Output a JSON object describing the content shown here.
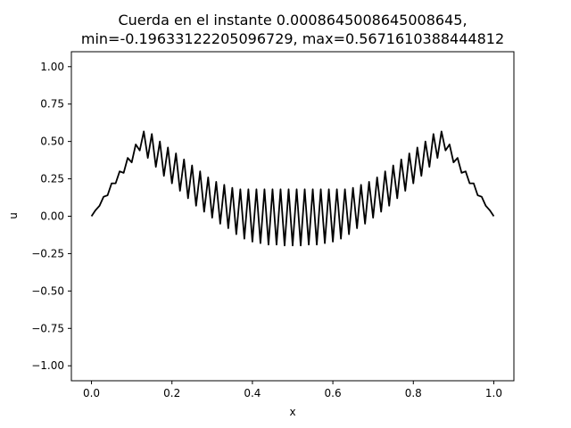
{
  "chart_data": {
    "type": "line",
    "title_lines": [
      "Cuerda en el instante 0.0008645008645008645,",
      "min=-0.19633122205096729, max=0.5671610388444812"
    ],
    "xlabel": "x",
    "ylabel": "u",
    "xlim": [
      -0.05,
      1.05
    ],
    "ylim": [
      -1.1,
      1.1
    ],
    "xticks": [
      {
        "value": 0.0,
        "label": "0.0"
      },
      {
        "value": 0.2,
        "label": "0.2"
      },
      {
        "value": 0.4,
        "label": "0.4"
      },
      {
        "value": 0.6,
        "label": "0.6"
      },
      {
        "value": 0.8,
        "label": "0.8"
      },
      {
        "value": 1.0,
        "label": "1.0"
      }
    ],
    "yticks": [
      {
        "value": 1.0,
        "label": "1.00"
      },
      {
        "value": 0.75,
        "label": "0.75"
      },
      {
        "value": 0.5,
        "label": "0.50"
      },
      {
        "value": 0.25,
        "label": "0.25"
      },
      {
        "value": 0.0,
        "label": "0.00"
      },
      {
        "value": -0.25,
        "label": "−0.25"
      },
      {
        "value": -0.5,
        "label": "−0.50"
      },
      {
        "value": -0.75,
        "label": "−0.75"
      },
      {
        "value": -1.0,
        "label": "−1.00"
      }
    ],
    "grid": false,
    "series": [
      {
        "color": "#000000",
        "x": [
          0.0,
          0.01,
          0.02,
          0.03,
          0.04,
          0.05,
          0.06,
          0.07,
          0.08,
          0.09,
          0.1,
          0.11,
          0.12,
          0.13,
          0.14,
          0.15,
          0.16,
          0.17,
          0.18,
          0.19,
          0.2,
          0.21,
          0.22,
          0.23,
          0.24,
          0.25,
          0.26,
          0.27,
          0.28,
          0.29,
          0.3,
          0.31,
          0.32,
          0.33,
          0.34,
          0.35,
          0.36,
          0.37,
          0.38,
          0.39,
          0.4,
          0.41,
          0.42,
          0.43,
          0.44,
          0.45,
          0.46,
          0.47,
          0.48,
          0.49,
          0.5,
          0.51,
          0.52,
          0.53,
          0.54,
          0.55,
          0.56,
          0.57,
          0.58,
          0.59,
          0.6,
          0.61,
          0.62,
          0.63,
          0.64,
          0.65,
          0.66,
          0.67,
          0.68,
          0.69,
          0.7,
          0.71,
          0.72,
          0.73,
          0.74,
          0.75,
          0.76,
          0.77,
          0.78,
          0.79,
          0.8,
          0.81,
          0.82,
          0.83,
          0.84,
          0.85,
          0.86,
          0.87,
          0.88,
          0.89,
          0.9,
          0.91,
          0.92,
          0.93,
          0.94,
          0.95,
          0.96,
          0.97,
          0.98,
          0.99,
          1.0
        ],
        "y": [
          0.0,
          0.04,
          0.07,
          0.13,
          0.14,
          0.22,
          0.22,
          0.3,
          0.29,
          0.39,
          0.36,
          0.48,
          0.44,
          0.567,
          0.39,
          0.55,
          0.33,
          0.5,
          0.27,
          0.46,
          0.22,
          0.42,
          0.17,
          0.38,
          0.12,
          0.34,
          0.07,
          0.3,
          0.03,
          0.26,
          -0.01,
          0.23,
          -0.05,
          0.21,
          -0.08,
          0.19,
          -0.12,
          0.18,
          -0.15,
          0.18,
          -0.17,
          0.18,
          -0.18,
          0.18,
          -0.19,
          0.18,
          -0.19,
          0.18,
          -0.196,
          0.18,
          -0.196,
          0.18,
          -0.196,
          0.18,
          -0.19,
          0.18,
          -0.19,
          0.18,
          -0.18,
          0.18,
          -0.17,
          0.18,
          -0.15,
          0.18,
          -0.12,
          0.19,
          -0.08,
          0.21,
          -0.05,
          0.23,
          -0.01,
          0.26,
          0.03,
          0.3,
          0.07,
          0.34,
          0.12,
          0.38,
          0.17,
          0.42,
          0.22,
          0.46,
          0.27,
          0.5,
          0.33,
          0.55,
          0.39,
          0.567,
          0.44,
          0.48,
          0.36,
          0.39,
          0.29,
          0.3,
          0.22,
          0.22,
          0.14,
          0.13,
          0.07,
          0.04,
          0.0
        ]
      }
    ]
  }
}
